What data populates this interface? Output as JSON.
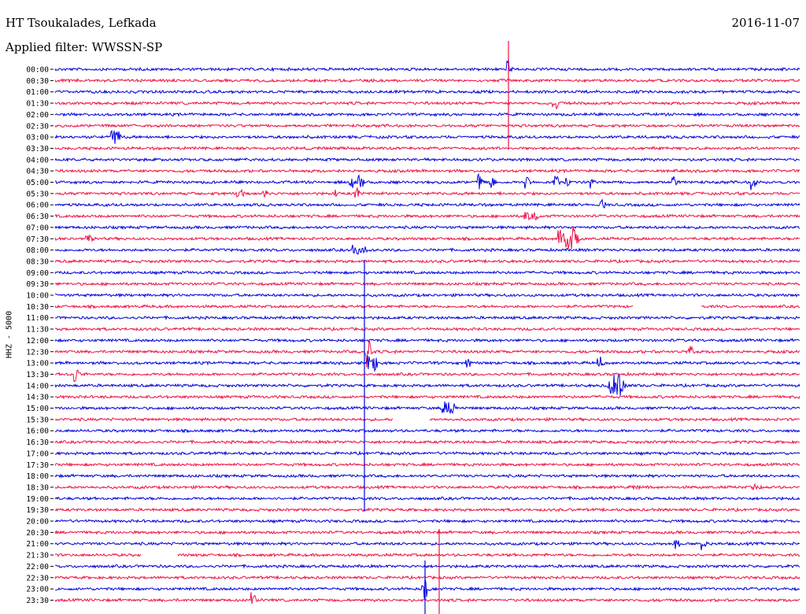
{
  "header": {
    "station": "HT Tsoukalades, Lefkada",
    "date": "2016-11-07",
    "filter": "Applied filter: WWSSN-SP"
  },
  "channel_label": "HHZ - 5000",
  "colors": {
    "odd_trace": "#0000dd",
    "even_trace": "#ee1144"
  },
  "chart_data": {
    "type": "line",
    "title": "HT Tsoukalades, Lefkada",
    "xlabel": "",
    "ylabel": "HHZ - 5000",
    "grid": false,
    "series": [
      {
        "name": "00:00",
        "values": []
      },
      {
        "name": "00:30",
        "values": []
      },
      {
        "name": "01:00",
        "values": []
      },
      {
        "name": "01:30",
        "values": []
      },
      {
        "name": "02:00",
        "values": []
      },
      {
        "name": "02:30",
        "values": []
      },
      {
        "name": "03:00",
        "values": []
      },
      {
        "name": "03:30",
        "values": []
      },
      {
        "name": "04:00",
        "values": []
      },
      {
        "name": "04:30",
        "values": []
      },
      {
        "name": "05:00",
        "values": []
      },
      {
        "name": "05:30",
        "values": []
      },
      {
        "name": "06:00",
        "values": []
      },
      {
        "name": "06:30",
        "values": []
      },
      {
        "name": "07:00",
        "values": []
      },
      {
        "name": "07:30",
        "values": []
      },
      {
        "name": "08:00",
        "values": []
      },
      {
        "name": "08:30",
        "values": []
      },
      {
        "name": "09:00",
        "values": []
      },
      {
        "name": "09:30",
        "values": []
      },
      {
        "name": "10:00",
        "values": []
      },
      {
        "name": "10:30",
        "values": []
      },
      {
        "name": "11:00",
        "values": []
      },
      {
        "name": "11:30",
        "values": []
      },
      {
        "name": "12:00",
        "values": []
      },
      {
        "name": "12:30",
        "values": []
      },
      {
        "name": "13:00",
        "values": []
      },
      {
        "name": "13:30",
        "values": []
      },
      {
        "name": "14:00",
        "values": []
      },
      {
        "name": "14:30",
        "values": []
      },
      {
        "name": "15:00",
        "values": []
      },
      {
        "name": "15:30",
        "values": []
      },
      {
        "name": "16:00",
        "values": []
      },
      {
        "name": "16:30",
        "values": []
      },
      {
        "name": "17:00",
        "values": []
      },
      {
        "name": "17:30",
        "values": []
      },
      {
        "name": "18:00",
        "values": []
      },
      {
        "name": "18:30",
        "values": []
      },
      {
        "name": "19:00",
        "values": []
      },
      {
        "name": "19:30",
        "values": []
      },
      {
        "name": "20:00",
        "values": []
      },
      {
        "name": "20:30",
        "values": []
      },
      {
        "name": "21:00",
        "values": []
      },
      {
        "name": "21:30",
        "values": []
      },
      {
        "name": "22:00",
        "values": []
      },
      {
        "name": "22:30",
        "values": []
      },
      {
        "name": "23:00",
        "values": []
      },
      {
        "name": "23:30",
        "values": []
      }
    ],
    "ticks": [
      "00:00",
      "00:30",
      "01:00",
      "01:30",
      "02:00",
      "02:30",
      "03:00",
      "03:30",
      "04:00",
      "04:30",
      "05:00",
      "05:30",
      "06:00",
      "06:30",
      "07:00",
      "07:30",
      "08:00",
      "08:30",
      "09:00",
      "09:30",
      "10:00",
      "10:30",
      "11:00",
      "11:30",
      "12:00",
      "12:30",
      "13:00",
      "13:30",
      "14:00",
      "14:30",
      "15:00",
      "15:30",
      "16:00",
      "16:30",
      "17:00",
      "17:30",
      "18:00",
      "18:30",
      "19:00",
      "19:30",
      "20:00",
      "20:30",
      "21:00",
      "21:30",
      "22:00",
      "22:30",
      "23:00",
      "23:30"
    ]
  }
}
